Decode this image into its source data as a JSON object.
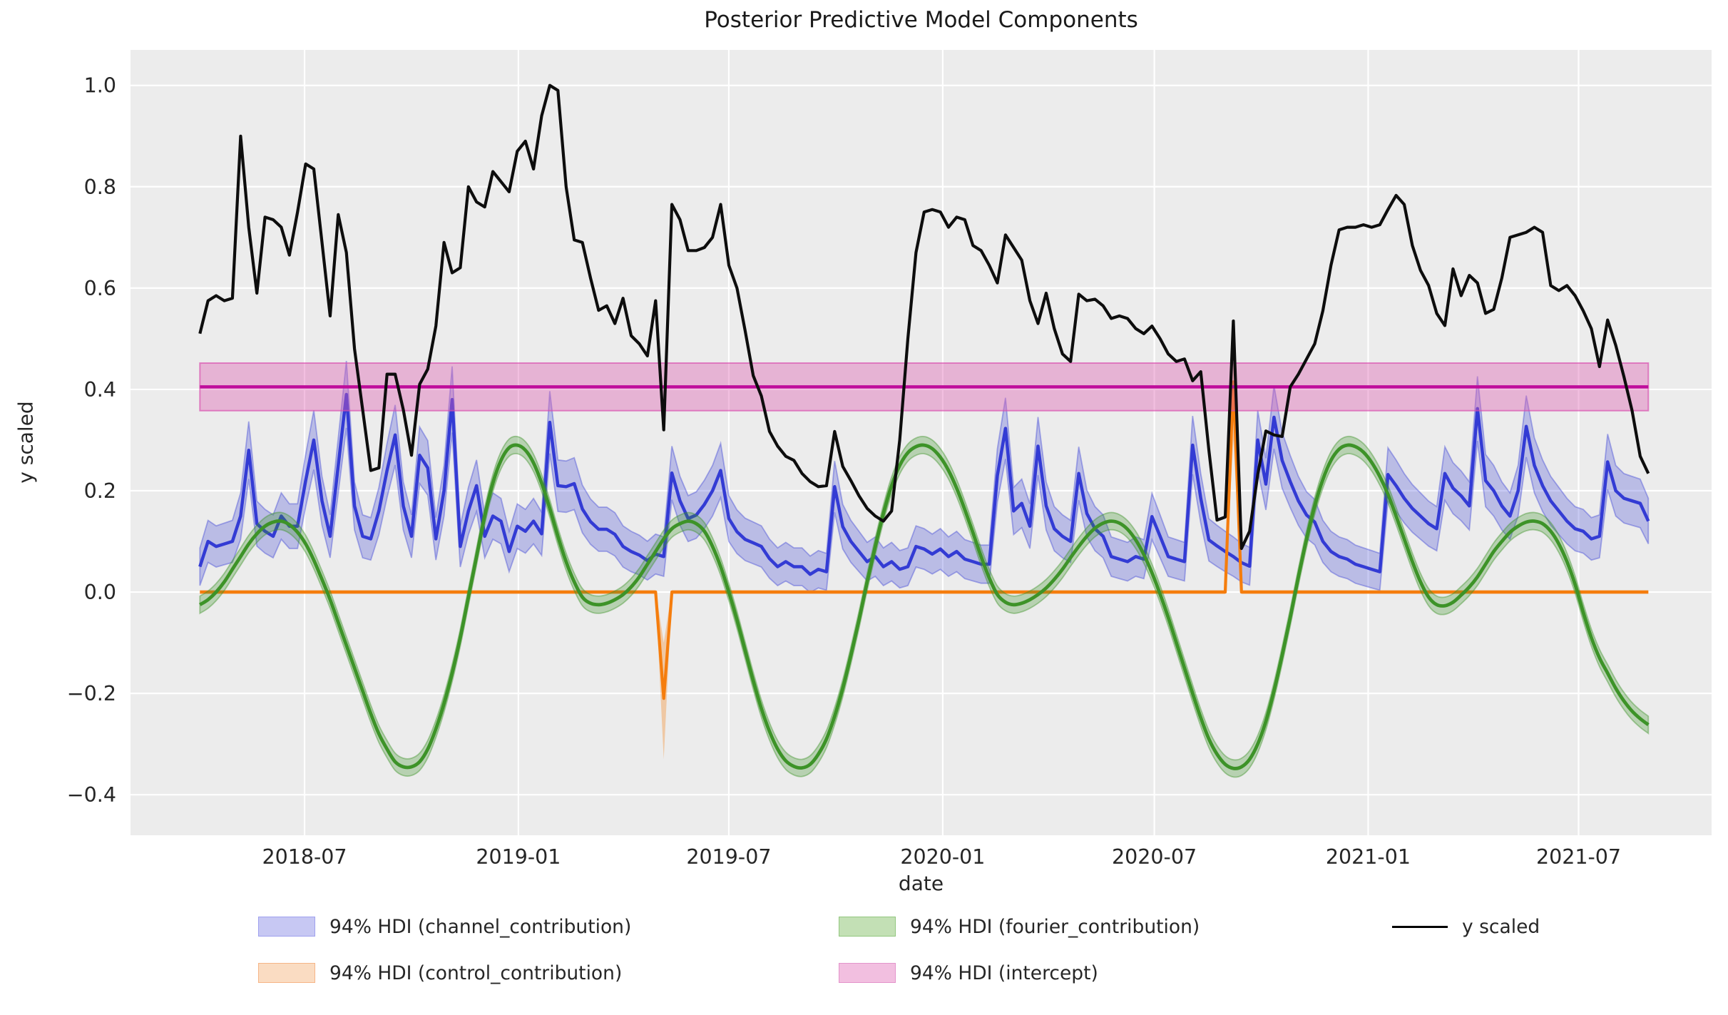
{
  "title": "Posterior Predictive Model Components",
  "axes": {
    "xlabel": "date",
    "ylabel": "y scaled",
    "y_ticks": [
      {
        "v": 1.0,
        "label": "1.0"
      },
      {
        "v": 0.8,
        "label": "0.8"
      },
      {
        "v": 0.6,
        "label": "0.6"
      },
      {
        "v": 0.4,
        "label": "0.4"
      },
      {
        "v": 0.2,
        "label": "0.2"
      },
      {
        "v": 0.0,
        "label": "0.0"
      },
      {
        "v": -0.2,
        "label": "−0.2"
      },
      {
        "v": -0.4,
        "label": "−0.4"
      }
    ],
    "x_ticks": [
      {
        "week": 12.86,
        "label": "2018-07"
      },
      {
        "week": 39.14,
        "label": "2019-01"
      },
      {
        "week": 65.0,
        "label": "2019-07"
      },
      {
        "week": 91.29,
        "label": "2020-01"
      },
      {
        "week": 117.29,
        "label": "2020-07"
      },
      {
        "week": 143.57,
        "label": "2021-01"
      },
      {
        "week": 169.43,
        "label": "2021-07"
      }
    ]
  },
  "colors": {
    "axes_background": "#ececec",
    "grid": "#ffffff",
    "y_scaled": "#0d0d0d",
    "channel_line": "#333bd4",
    "channel_band": "rgba(51,59,212,0.27)",
    "channel_band_edge": "rgba(51,59,212,0.38)",
    "control_line": "#f57d0d",
    "control_band": "rgba(245,125,13,0.32)",
    "fourier_line": "#3d9328",
    "fourier_band": "rgba(61,147,40,0.30)",
    "fourier_band_edge": "rgba(61,147,40,0.42)",
    "intercept_line": "#bf0d9b",
    "intercept_band": "rgba(222,95,177,0.40)",
    "intercept_band_edge": "rgba(217,79,174,0.65)"
  },
  "legend": {
    "items": [
      {
        "id": "channel",
        "label": "94% HDI (channel_contribution)",
        "swatch_fill": "#c7c8f3",
        "swatch_edge": "#9fa1ef",
        "row": 1,
        "col": 1
      },
      {
        "id": "control",
        "label": "94% HDI (control_contribution)",
        "swatch_fill": "#fadcc2",
        "swatch_edge": "#f6b587",
        "row": 2,
        "col": 1
      },
      {
        "id": "fourier",
        "label": "94% HDI (fourier_contribution)",
        "swatch_fill": "#c3e0b5",
        "swatch_edge": "#93c77f",
        "row": 1,
        "col": 2
      },
      {
        "id": "intercept",
        "label": "94% HDI (intercept)",
        "swatch_fill": "#f2bfe0",
        "swatch_edge": "#e394cb",
        "row": 2,
        "col": 2
      },
      {
        "id": "y_scaled",
        "label": "y scaled",
        "swatch_line": true,
        "row": 1,
        "col": 3
      }
    ]
  },
  "chart_data": {
    "type": "line",
    "title": "Posterior Predictive Model Components",
    "xlabel": "date",
    "ylabel": "y scaled",
    "x_start": "2018-04-02",
    "x_freq": "weekly",
    "n_points": 179,
    "ylim": [
      -0.48,
      1.07
    ],
    "grid": true,
    "legend_position": "below",
    "series": [
      {
        "name": "y_scaled",
        "label": "y scaled",
        "kind": "line",
        "color_key": "y_scaled",
        "values": [
          0.51,
          0.575,
          0.585,
          0.575,
          0.58,
          0.9,
          0.72,
          0.59,
          0.74,
          0.735,
          0.72,
          0.665,
          0.75,
          0.845,
          0.835,
          0.69,
          0.545,
          0.745,
          0.67,
          0.48,
          0.36,
          0.24,
          0.245,
          0.43,
          0.43,
          0.36,
          0.27,
          0.41,
          0.44,
          0.525,
          0.69,
          0.63,
          0.64,
          0.8,
          0.77,
          0.76,
          0.83,
          0.81,
          0.79,
          0.87,
          0.89,
          0.835,
          0.94,
          1.0,
          0.99,
          0.8,
          0.695,
          0.69,
          0.62,
          0.556,
          0.565,
          0.53,
          0.58,
          0.506,
          0.49,
          0.466,
          0.575,
          0.32,
          0.765,
          0.735,
          0.674,
          0.674,
          0.68,
          0.7,
          0.765,
          0.645,
          0.6,
          0.516,
          0.427,
          0.387,
          0.317,
          0.288,
          0.268,
          0.26,
          0.234,
          0.218,
          0.208,
          0.21,
          0.317,
          0.248,
          0.22,
          0.19,
          0.165,
          0.15,
          0.14,
          0.16,
          0.3,
          0.5,
          0.67,
          0.75,
          0.755,
          0.75,
          0.72,
          0.74,
          0.735,
          0.684,
          0.674,
          0.645,
          0.61,
          0.705,
          0.68,
          0.655,
          0.575,
          0.53,
          0.59,
          0.52,
          0.47,
          0.455,
          0.588,
          0.575,
          0.578,
          0.565,
          0.54,
          0.545,
          0.54,
          0.52,
          0.51,
          0.525,
          0.5,
          0.47,
          0.455,
          0.46,
          0.417,
          0.435,
          0.28,
          0.142,
          0.148,
          0.535,
          0.086,
          0.12,
          0.232,
          0.318,
          0.31,
          0.307,
          0.405,
          0.43,
          0.46,
          0.49,
          0.555,
          0.645,
          0.715,
          0.72,
          0.72,
          0.725,
          0.72,
          0.725,
          0.755,
          0.783,
          0.765,
          0.684,
          0.635,
          0.605,
          0.55,
          0.526,
          0.638,
          0.585,
          0.625,
          0.61,
          0.55,
          0.558,
          0.62,
          0.7,
          0.705,
          0.71,
          0.72,
          0.71,
          0.605,
          0.595,
          0.605,
          0.585,
          0.555,
          0.52,
          0.445,
          0.537,
          0.487,
          0.425,
          0.358,
          0.268,
          0.234
        ]
      },
      {
        "name": "channel_contribution",
        "label": "94% HDI (channel_contribution)",
        "kind": "line_with_hdi",
        "color_key": "channel_line",
        "hdi_halfwidth_rule": {
          "base": 0.033,
          "slope": 0.085
        },
        "values": [
          0.05,
          0.1,
          0.09,
          0.095,
          0.1,
          0.15,
          0.28,
          0.135,
          0.12,
          0.11,
          0.15,
          0.13,
          0.13,
          0.22,
          0.3,
          0.18,
          0.11,
          0.25,
          0.39,
          0.17,
          0.11,
          0.105,
          0.16,
          0.24,
          0.31,
          0.17,
          0.11,
          0.27,
          0.245,
          0.105,
          0.2,
          0.38,
          0.09,
          0.16,
          0.21,
          0.11,
          0.15,
          0.14,
          0.08,
          0.13,
          0.12,
          0.14,
          0.115,
          0.335,
          0.21,
          0.208,
          0.214,
          0.164,
          0.139,
          0.124,
          0.124,
          0.114,
          0.09,
          0.08,
          0.073,
          0.062,
          0.075,
          0.07,
          0.235,
          0.18,
          0.145,
          0.152,
          0.173,
          0.2,
          0.24,
          0.145,
          0.119,
          0.104,
          0.097,
          0.09,
          0.066,
          0.05,
          0.06,
          0.05,
          0.05,
          0.035,
          0.045,
          0.04,
          0.208,
          0.129,
          0.1,
          0.08,
          0.06,
          0.07,
          0.05,
          0.06,
          0.045,
          0.05,
          0.09,
          0.085,
          0.075,
          0.085,
          0.07,
          0.08,
          0.065,
          0.06,
          0.055,
          0.055,
          0.23,
          0.323,
          0.16,
          0.175,
          0.13,
          0.288,
          0.17,
          0.125,
          0.11,
          0.1,
          0.234,
          0.155,
          0.125,
          0.11,
          0.07,
          0.065,
          0.06,
          0.07,
          0.065,
          0.149,
          0.11,
          0.07,
          0.065,
          0.06,
          0.29,
          0.185,
          0.103,
          0.091,
          0.08,
          0.07,
          0.058,
          0.051,
          0.3,
          0.213,
          0.345,
          0.26,
          0.218,
          0.18,
          0.152,
          0.138,
          0.1,
          0.08,
          0.07,
          0.065,
          0.055,
          0.05,
          0.045,
          0.04,
          0.232,
          0.21,
          0.185,
          0.165,
          0.15,
          0.135,
          0.125,
          0.234,
          0.205,
          0.19,
          0.17,
          0.362,
          0.22,
          0.2,
          0.17,
          0.15,
          0.2,
          0.327,
          0.25,
          0.21,
          0.18,
          0.16,
          0.14,
          0.125,
          0.12,
          0.105,
          0.11,
          0.257,
          0.2,
          0.185,
          0.18,
          0.175,
          0.14
        ]
      },
      {
        "name": "control_contribution",
        "label": "94% HDI (control_contribution)",
        "kind": "line_with_hdi",
        "color_key": "control_line",
        "base_value": 0.0,
        "base_hdi_halfwidth": 0.004,
        "events": [
          {
            "week": 57,
            "value": -0.21,
            "hdi": [
              -0.33,
              -0.1
            ]
          },
          {
            "week": 127,
            "value": 0.415,
            "hdi": [
              0.3,
              0.455
            ]
          }
        ]
      },
      {
        "name": "fourier_contribution",
        "label": "94% HDI (fourier_contribution)",
        "kind": "line_with_hdi",
        "color_key": "fourier_line",
        "hdi_halfwidth": 0.017,
        "smooth": true,
        "values": [
          -0.025,
          -0.015,
          0.0,
          0.02,
          0.045,
          0.07,
          0.095,
          0.115,
          0.13,
          0.138,
          0.14,
          0.133,
          0.118,
          0.095,
          0.063,
          0.025,
          -0.015,
          -0.06,
          -0.105,
          -0.15,
          -0.195,
          -0.24,
          -0.28,
          -0.31,
          -0.335,
          -0.345,
          -0.345,
          -0.335,
          -0.31,
          -0.27,
          -0.22,
          -0.16,
          -0.09,
          -0.01,
          0.07,
          0.15,
          0.215,
          0.26,
          0.285,
          0.29,
          0.28,
          0.255,
          0.215,
          0.165,
          0.11,
          0.06,
          0.02,
          -0.01,
          -0.022,
          -0.025,
          -0.022,
          -0.015,
          -0.005,
          0.01,
          0.03,
          0.055,
          0.08,
          0.105,
          0.125,
          0.135,
          0.14,
          0.135,
          0.12,
          0.09,
          0.05,
          0.0,
          -0.055,
          -0.115,
          -0.175,
          -0.23,
          -0.275,
          -0.31,
          -0.333,
          -0.344,
          -0.347,
          -0.34,
          -0.32,
          -0.29,
          -0.245,
          -0.19,
          -0.125,
          -0.055,
          0.02,
          0.09,
          0.155,
          0.21,
          0.25,
          0.275,
          0.287,
          0.29,
          0.283,
          0.266,
          0.24,
          0.205,
          0.163,
          0.117,
          0.07,
          0.028,
          -0.005,
          -0.02,
          -0.025,
          -0.022,
          -0.015,
          -0.005,
          0.008,
          0.025,
          0.045,
          0.068,
          0.09,
          0.11,
          0.126,
          0.136,
          0.14,
          0.136,
          0.124,
          0.103,
          0.074,
          0.038,
          -0.004,
          -0.05,
          -0.1,
          -0.15,
          -0.2,
          -0.248,
          -0.29,
          -0.32,
          -0.34,
          -0.348,
          -0.345,
          -0.33,
          -0.3,
          -0.255,
          -0.195,
          -0.125,
          -0.05,
          0.03,
          0.105,
          0.17,
          0.222,
          0.26,
          0.282,
          0.29,
          0.287,
          0.276,
          0.256,
          0.228,
          0.193,
          0.15,
          0.105,
          0.06,
          0.02,
          -0.01,
          -0.025,
          -0.027,
          -0.02,
          -0.006,
          0.01,
          0.03,
          0.055,
          0.08,
          0.1,
          0.118,
          0.13,
          0.138,
          0.14,
          0.135,
          0.12,
          0.095,
          0.06,
          0.015,
          -0.04,
          -0.09,
          -0.13,
          -0.16,
          -0.19,
          -0.215,
          -0.235,
          -0.25,
          -0.262
        ]
      },
      {
        "name": "intercept",
        "label": "94% HDI (intercept)",
        "kind": "hline_with_hdi",
        "color_key": "intercept_line",
        "value": 0.405,
        "hdi": [
          0.358,
          0.452
        ]
      }
    ]
  }
}
